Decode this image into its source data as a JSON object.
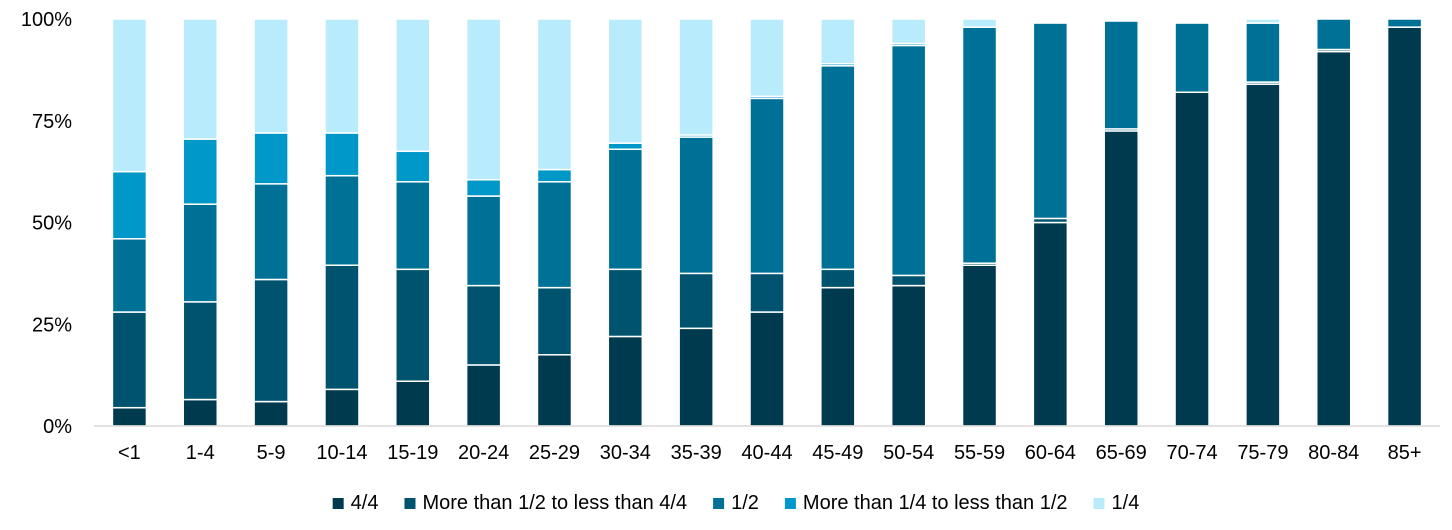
{
  "chart_data": {
    "type": "bar",
    "stacked": true,
    "normalized": true,
    "categories": [
      "<1",
      "1-4",
      "5-9",
      "10-14",
      "15-19",
      "20-24",
      "25-29",
      "30-34",
      "35-39",
      "40-44",
      "45-49",
      "50-54",
      "55-59",
      "60-64",
      "65-69",
      "70-74",
      "75-79",
      "80-84",
      "85+"
    ],
    "y_ticks": [
      "0%",
      "25%",
      "50%",
      "75%",
      "100%"
    ],
    "ylim": [
      0,
      100
    ],
    "legend_position": "bottom",
    "grid": false,
    "series": [
      {
        "name": "4/4",
        "color": "#003a4f",
        "values": [
          4.5,
          6.5,
          6,
          9,
          11,
          15,
          17.5,
          22,
          24,
          28,
          34,
          34.5,
          39.5,
          50,
          72.5,
          82,
          84,
          92,
          98
        ]
      },
      {
        "name": "More than 1/2 to less than 4/4",
        "color": "#00536e",
        "values": [
          23.5,
          24,
          30,
          30.5,
          27.5,
          19.5,
          16.5,
          16.5,
          13.5,
          9.5,
          4.5,
          2.5,
          0.5,
          1,
          0.5,
          0,
          0.5,
          0.5,
          0
        ]
      },
      {
        "name": "1/2",
        "color": "#007196",
        "values": [
          18,
          24,
          23.5,
          22,
          21.5,
          22,
          26,
          29.5,
          33.5,
          43,
          50,
          56.5,
          58,
          48,
          26.5,
          17,
          14.5,
          7.5,
          2
        ]
      },
      {
        "name": "More than 1/4 to less than 1/2",
        "color": "#0098c8",
        "values": [
          16.5,
          16,
          12.5,
          10.5,
          7.5,
          4,
          3,
          1.5,
          0.5,
          0.5,
          0.5,
          0.5,
          0,
          0,
          0,
          0,
          0,
          0,
          0
        ]
      },
      {
        "name": "1/4",
        "color": "#b8ecfc",
        "values": [
          37.5,
          29.5,
          28,
          28,
          32.5,
          39.5,
          37,
          30.5,
          28.5,
          19,
          11,
          6,
          2,
          0,
          0,
          0,
          1,
          0,
          0
        ]
      }
    ]
  }
}
